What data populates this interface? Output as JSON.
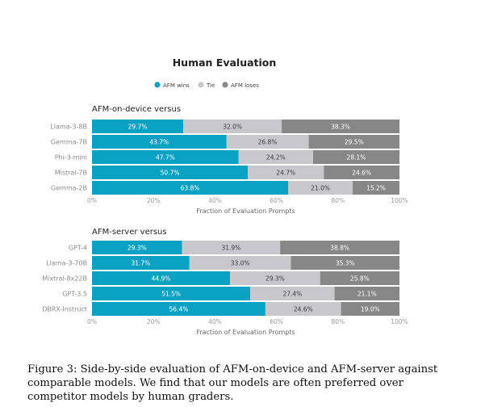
{
  "title": "Human Evaluation",
  "colors": {
    "win": "#0aa2c2",
    "tie": "#c8c8cc",
    "lose": "#878788"
  },
  "caption": "Figure 3: Side-by-side evaluation of AFM-on-device and AFM-server against comparable models. We find that our models are often preferred over competitor models by human graders.",
  "chart_data": [
    {
      "type": "bar",
      "orientation": "horizontal-stacked",
      "title": "AFM-on-device versus",
      "xlabel": "Fraction of Evaluation Prompts",
      "xlim": [
        0,
        100
      ],
      "ticks": [
        "0%",
        "20%",
        "40%",
        "60%",
        "80%",
        "100%"
      ],
      "legend": [
        "AFM wins",
        "Tie",
        "AFM loses"
      ],
      "legend_position": "top-center",
      "categories": [
        "Llama-3-8B",
        "Gemma-7B",
        "Phi-3-mini",
        "Mistral-7B",
        "Gemma-2B"
      ],
      "series": [
        {
          "name": "AFM wins",
          "values": [
            29.7,
            43.7,
            47.7,
            50.7,
            63.8
          ]
        },
        {
          "name": "Tie",
          "values": [
            32.0,
            26.8,
            24.2,
            24.7,
            21.0
          ]
        },
        {
          "name": "AFM loses",
          "values": [
            38.3,
            29.5,
            28.1,
            24.6,
            15.2
          ]
        }
      ]
    },
    {
      "type": "bar",
      "orientation": "horizontal-stacked",
      "title": "AFM-server versus",
      "xlabel": "Fraction of Evaluation Prompts",
      "xlim": [
        0,
        100
      ],
      "ticks": [
        "0%",
        "20%",
        "40%",
        "60%",
        "80%",
        "100%"
      ],
      "legend": [
        "AFM wins",
        "Tie",
        "AFM loses"
      ],
      "legend_position": "top-center",
      "categories": [
        "GPT-4",
        "Llama-3-70B",
        "Mixtral-8x22B",
        "GPT-3.5",
        "DBRX-Instruct"
      ],
      "series": [
        {
          "name": "AFM wins",
          "values": [
            29.3,
            31.7,
            44.9,
            51.5,
            56.4
          ]
        },
        {
          "name": "Tie",
          "values": [
            31.9,
            33.0,
            29.3,
            27.4,
            24.6
          ]
        },
        {
          "name": "AFM loses",
          "values": [
            38.8,
            35.3,
            25.8,
            21.1,
            19.0
          ]
        }
      ]
    }
  ]
}
